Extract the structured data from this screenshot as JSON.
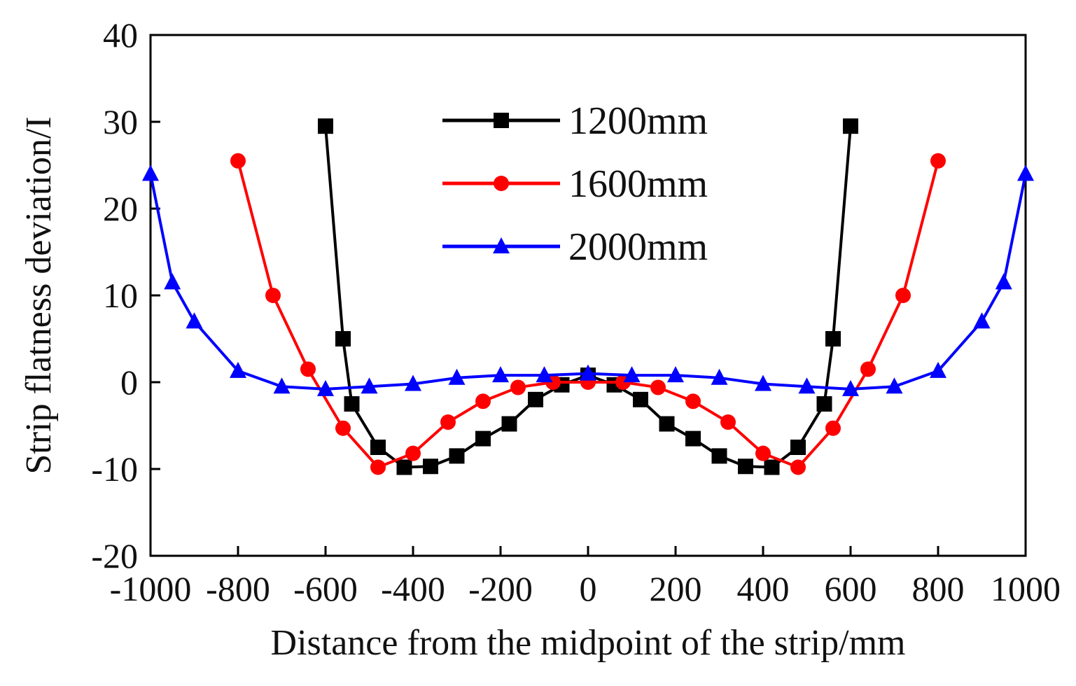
{
  "chart_data": {
    "type": "line",
    "title": "",
    "xlabel": "Distance from the midpoint of the strip/mm",
    "ylabel": "Strip flatness deviation/I",
    "xlim": [
      -1000,
      1000
    ],
    "ylim": [
      -20,
      40
    ],
    "xticks": [
      -1000,
      -800,
      -600,
      -400,
      -200,
      0,
      200,
      400,
      600,
      800,
      1000
    ],
    "yticks": [
      -20,
      -10,
      0,
      10,
      20,
      30,
      40
    ],
    "xtick_labels": [
      "-1000",
      "-800",
      "-600",
      "-400",
      "-200",
      "0",
      "200",
      "400",
      "600",
      "800",
      "1000"
    ],
    "ytick_labels": [
      "-20",
      "-10",
      "0",
      "10",
      "20",
      "30",
      "40"
    ],
    "grid": false,
    "legend_position": "top-center",
    "series": [
      {
        "name": "1200mm",
        "color": "#000000",
        "marker": "square",
        "x": [
          -600,
          -560,
          -540,
          -480,
          -420,
          -360,
          -300,
          -240,
          -180,
          -120,
          -60,
          0,
          60,
          120,
          180,
          240,
          300,
          360,
          420,
          480,
          540,
          560,
          600
        ],
        "y": [
          29.5,
          5,
          -2.5,
          -7.5,
          -9.8,
          -9.7,
          -8.5,
          -6.5,
          -4.8,
          -2,
          -0.3,
          0.8,
          -0.3,
          -2,
          -4.8,
          -6.5,
          -8.5,
          -9.7,
          -9.8,
          -7.5,
          -2.5,
          5,
          29.5
        ]
      },
      {
        "name": "1600mm",
        "color": "#ff0000",
        "marker": "circle",
        "x": [
          -800,
          -720,
          -640,
          -560,
          -480,
          -400,
          -320,
          -240,
          -160,
          -80,
          0,
          80,
          160,
          240,
          320,
          400,
          480,
          560,
          640,
          720,
          800
        ],
        "y": [
          25.5,
          10,
          1.5,
          -5.3,
          -9.8,
          -8.2,
          -4.6,
          -2.2,
          -0.6,
          0,
          0,
          0,
          -0.6,
          -2.2,
          -4.6,
          -8.2,
          -9.8,
          -5.3,
          1.5,
          10,
          25.5
        ]
      },
      {
        "name": "2000mm",
        "color": "#0000ff",
        "marker": "triangle",
        "x": [
          -1000,
          -950,
          -900,
          -800,
          -700,
          -600,
          -500,
          -400,
          -300,
          -200,
          -100,
          0,
          100,
          200,
          300,
          400,
          500,
          600,
          700,
          800,
          900,
          950,
          1000
        ],
        "y": [
          24,
          11.5,
          7,
          1.3,
          -0.5,
          -0.8,
          -0.5,
          -0.2,
          0.5,
          0.8,
          0.8,
          1,
          0.8,
          0.8,
          0.5,
          -0.2,
          -0.5,
          -0.8,
          -0.5,
          1.3,
          7,
          11.5,
          24
        ]
      }
    ]
  }
}
